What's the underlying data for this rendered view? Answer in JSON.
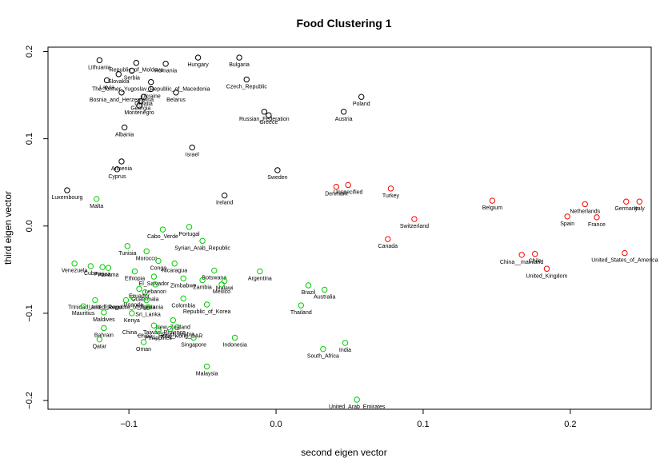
{
  "chart_data": {
    "type": "scatter",
    "title": "Food Clustering 1",
    "xlabel": "second eigen vector",
    "ylabel": "third eigen vector",
    "xlim": [
      -0.155,
      0.255
    ],
    "ylim": [
      -0.21,
      0.205
    ],
    "x_ticks": [
      -0.1,
      0.0,
      0.1,
      0.2
    ],
    "x_tick_labels": [
      "−0.1",
      "0.0",
      "0.1",
      "0.2"
    ],
    "y_ticks": [
      -0.2,
      -0.1,
      0.0,
      0.1,
      0.2
    ],
    "y_tick_labels": [
      "−0.2",
      "−0.1",
      "0.0",
      "0.1",
      "0.2"
    ],
    "grid": false,
    "legend": "none",
    "marker": "open-circle",
    "colors": {
      "black": "#000000",
      "red": "#ff0000",
      "green": "#00cc00"
    },
    "points": [
      {
        "label": "Lithuania",
        "x": -0.12,
        "y": 0.19,
        "cluster": "black"
      },
      {
        "label": "Republic_of_Moldova",
        "x": -0.095,
        "y": 0.187,
        "cluster": "black"
      },
      {
        "label": "Romania",
        "x": -0.075,
        "y": 0.186,
        "cluster": "black"
      },
      {
        "label": "Hungary",
        "x": -0.053,
        "y": 0.193,
        "cluster": "black"
      },
      {
        "label": "Bulgaria",
        "x": -0.025,
        "y": 0.193,
        "cluster": "black"
      },
      {
        "label": "Serbia",
        "x": -0.098,
        "y": 0.178,
        "cluster": "black"
      },
      {
        "label": "Slovakia",
        "x": -0.107,
        "y": 0.174,
        "cluster": "black"
      },
      {
        "label": "Latvia",
        "x": -0.115,
        "y": 0.167,
        "cluster": "black"
      },
      {
        "label": "The_former_Yugoslav_Republic_of_Macedonia",
        "x": -0.085,
        "y": 0.165,
        "cluster": "black"
      },
      {
        "label": "Ukraine",
        "x": -0.085,
        "y": 0.157,
        "cluster": "black"
      },
      {
        "label": "Czech_Republic",
        "x": -0.02,
        "y": 0.168,
        "cluster": "black"
      },
      {
        "label": "Croatia",
        "x": -0.09,
        "y": 0.148,
        "cluster": "black"
      },
      {
        "label": "Belarus",
        "x": -0.068,
        "y": 0.153,
        "cluster": "black"
      },
      {
        "label": "Bosnia_and_Herzegovina",
        "x": -0.105,
        "y": 0.153,
        "cluster": "black"
      },
      {
        "label": "Georgia",
        "x": -0.092,
        "y": 0.143,
        "cluster": "black"
      },
      {
        "label": "Montenegro",
        "x": -0.093,
        "y": 0.138,
        "cluster": "black"
      },
      {
        "label": "Poland",
        "x": 0.058,
        "y": 0.148,
        "cluster": "black"
      },
      {
        "label": "Austria",
        "x": 0.046,
        "y": 0.131,
        "cluster": "black"
      },
      {
        "label": "Russian_Federation",
        "x": -0.008,
        "y": 0.131,
        "cluster": "black"
      },
      {
        "label": "Greece",
        "x": -0.005,
        "y": 0.127,
        "cluster": "black"
      },
      {
        "label": "Albania",
        "x": -0.103,
        "y": 0.113,
        "cluster": "black"
      },
      {
        "label": "Israel",
        "x": -0.057,
        "y": 0.09,
        "cluster": "black"
      },
      {
        "label": "Armenia",
        "x": -0.105,
        "y": 0.074,
        "cluster": "black"
      },
      {
        "label": "Cyprus",
        "x": -0.108,
        "y": 0.065,
        "cluster": "black"
      },
      {
        "label": "Sweden",
        "x": 0.001,
        "y": 0.064,
        "cluster": "black"
      },
      {
        "label": "Luxembourg",
        "x": -0.142,
        "y": 0.041,
        "cluster": "black"
      },
      {
        "label": "Ireland",
        "x": -0.035,
        "y": 0.035,
        "cluster": "black"
      },
      {
        "label": "Denmark",
        "x": 0.041,
        "y": 0.045,
        "cluster": "red"
      },
      {
        "label": "Unspecified",
        "x": 0.049,
        "y": 0.047,
        "cluster": "red"
      },
      {
        "label": "Turkey",
        "x": 0.078,
        "y": 0.043,
        "cluster": "red"
      },
      {
        "label": "Belgium",
        "x": 0.147,
        "y": 0.029,
        "cluster": "red"
      },
      {
        "label": "Netherlands",
        "x": 0.21,
        "y": 0.025,
        "cluster": "red"
      },
      {
        "label": "Germany",
        "x": 0.238,
        "y": 0.028,
        "cluster": "red"
      },
      {
        "label": "Italy",
        "x": 0.247,
        "y": 0.028,
        "cluster": "red"
      },
      {
        "label": "Spain",
        "x": 0.198,
        "y": 0.011,
        "cluster": "red"
      },
      {
        "label": "France",
        "x": 0.218,
        "y": 0.01,
        "cluster": "red"
      },
      {
        "label": "Switzerland",
        "x": 0.094,
        "y": 0.008,
        "cluster": "red"
      },
      {
        "label": "Canada",
        "x": 0.076,
        "y": -0.015,
        "cluster": "red"
      },
      {
        "label": "United_States_of_America",
        "x": 0.237,
        "y": -0.031,
        "cluster": "red"
      },
      {
        "label": "China__mainland",
        "x": 0.167,
        "y": -0.033,
        "cluster": "red"
      },
      {
        "label": "Chile",
        "x": 0.176,
        "y": -0.032,
        "cluster": "red"
      },
      {
        "label": "United_Kingdom",
        "x": 0.184,
        "y": -0.049,
        "cluster": "red"
      },
      {
        "label": "Malta",
        "x": -0.122,
        "y": 0.031,
        "cluster": "green"
      },
      {
        "label": "Cabo_Verde",
        "x": -0.077,
        "y": -0.004,
        "cluster": "green"
      },
      {
        "label": "Portugal",
        "x": -0.059,
        "y": -0.001,
        "cluster": "green"
      },
      {
        "label": "Syrian_Arab_Republic",
        "x": -0.05,
        "y": -0.017,
        "cluster": "green"
      },
      {
        "label": "Tunisia",
        "x": -0.101,
        "y": -0.023,
        "cluster": "green"
      },
      {
        "label": "Morocco",
        "x": -0.088,
        "y": -0.029,
        "cluster": "green"
      },
      {
        "label": "Venezuela",
        "x": -0.137,
        "y": -0.043,
        "cluster": "green"
      },
      {
        "label": "Cuba",
        "x": -0.126,
        "y": -0.046,
        "cluster": "green"
      },
      {
        "label": "Papua",
        "x": -0.118,
        "y": -0.047,
        "cluster": "green"
      },
      {
        "label": "Panama",
        "x": -0.114,
        "y": -0.048,
        "cluster": "green"
      },
      {
        "label": "Congo",
        "x": -0.08,
        "y": -0.04,
        "cluster": "green"
      },
      {
        "label": "Nicaragua",
        "x": -0.069,
        "y": -0.043,
        "cluster": "green"
      },
      {
        "label": "Ethiopia",
        "x": -0.096,
        "y": -0.052,
        "cluster": "green"
      },
      {
        "label": "El_Salvador",
        "x": -0.083,
        "y": -0.058,
        "cluster": "green"
      },
      {
        "label": "Botswana",
        "x": -0.042,
        "y": -0.051,
        "cluster": "green"
      },
      {
        "label": "Argentina",
        "x": -0.011,
        "y": -0.052,
        "cluster": "green"
      },
      {
        "label": "Zimbabwe",
        "x": -0.063,
        "y": -0.06,
        "cluster": "green"
      },
      {
        "label": "Zambia",
        "x": -0.05,
        "y": -0.062,
        "cluster": "green"
      },
      {
        "label": "Lebanon",
        "x": -0.082,
        "y": -0.067,
        "cluster": "green"
      },
      {
        "label": "Malawi",
        "x": -0.035,
        "y": -0.063,
        "cluster": "green"
      },
      {
        "label": "Mexico",
        "x": -0.037,
        "y": -0.067,
        "cluster": "green"
      },
      {
        "label": "Guatemala",
        "x": -0.089,
        "y": -0.076,
        "cluster": "green"
      },
      {
        "label": "Ecuador",
        "x": -0.093,
        "y": -0.072,
        "cluster": "green"
      },
      {
        "label": "Uganda",
        "x": -0.097,
        "y": -0.082,
        "cluster": "green"
      },
      {
        "label": "Nigeria",
        "x": -0.088,
        "y": -0.085,
        "cluster": "green"
      },
      {
        "label": "Brazil",
        "x": 0.022,
        "y": -0.068,
        "cluster": "green"
      },
      {
        "label": "Australia",
        "x": 0.033,
        "y": -0.073,
        "cluster": "green"
      },
      {
        "label": "Trinidad_and_Tobago",
        "x": -0.123,
        "y": -0.085,
        "cluster": "green"
      },
      {
        "label": "United_Republic_of_Tanzania",
        "x": -0.102,
        "y": -0.085,
        "cluster": "green"
      },
      {
        "label": "Colombia",
        "x": -0.063,
        "y": -0.083,
        "cluster": "green"
      },
      {
        "label": "Republic_of_Korea",
        "x": -0.047,
        "y": -0.09,
        "cluster": "green"
      },
      {
        "label": "Thailand",
        "x": 0.017,
        "y": -0.091,
        "cluster": "green"
      },
      {
        "label": "Mauritius",
        "x": -0.131,
        "y": -0.092,
        "cluster": "green"
      },
      {
        "label": "Sri_Lanka",
        "x": -0.087,
        "y": -0.093,
        "cluster": "green"
      },
      {
        "label": "Maldives",
        "x": -0.117,
        "y": -0.099,
        "cluster": "green"
      },
      {
        "label": "Kenya",
        "x": -0.098,
        "y": -0.1,
        "cluster": "green"
      },
      {
        "label": "New_Zealand",
        "x": -0.07,
        "y": -0.108,
        "cluster": "green"
      },
      {
        "label": "China__Taiwan_Province",
        "x": -0.083,
        "y": -0.114,
        "cluster": "green"
      },
      {
        "label": "China__Hong_Kong_SAR",
        "x": -0.072,
        "y": -0.118,
        "cluster": "green"
      },
      {
        "label": "Saudi_Arabia",
        "x": -0.067,
        "y": -0.116,
        "cluster": "green"
      },
      {
        "label": "Philippines",
        "x": -0.08,
        "y": -0.12,
        "cluster": "green"
      },
      {
        "label": "Bahrain",
        "x": -0.117,
        "y": -0.117,
        "cluster": "green"
      },
      {
        "label": "Singapore",
        "x": -0.056,
        "y": -0.128,
        "cluster": "green"
      },
      {
        "label": "Indonesia",
        "x": -0.028,
        "y": -0.128,
        "cluster": "green"
      },
      {
        "label": "Qatar",
        "x": -0.12,
        "y": -0.13,
        "cluster": "green"
      },
      {
        "label": "Oman",
        "x": -0.09,
        "y": -0.133,
        "cluster": "green"
      },
      {
        "label": "India",
        "x": 0.047,
        "y": -0.134,
        "cluster": "green"
      },
      {
        "label": "South_Africa",
        "x": 0.032,
        "y": -0.141,
        "cluster": "green"
      },
      {
        "label": "Malaysia",
        "x": -0.047,
        "y": -0.161,
        "cluster": "green"
      },
      {
        "label": "United_Arab_Emirates",
        "x": 0.055,
        "y": -0.199,
        "cluster": "green"
      }
    ]
  }
}
